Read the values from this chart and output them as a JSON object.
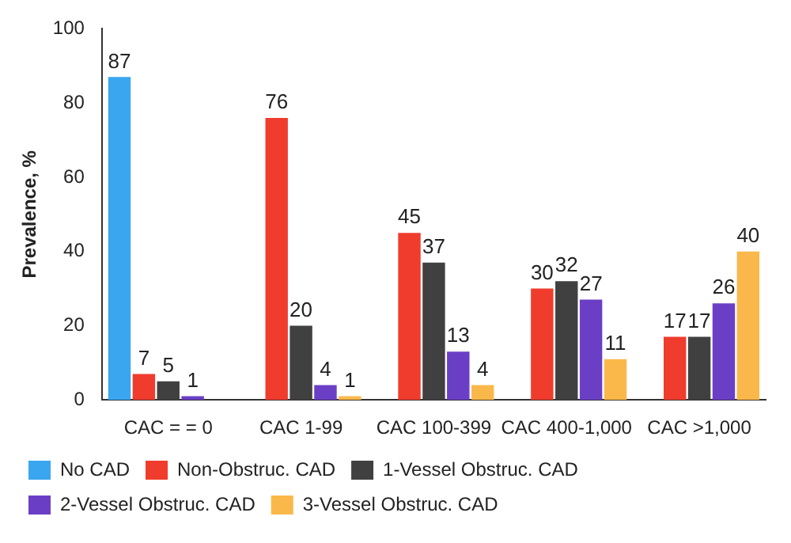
{
  "chart_data": {
    "type": "bar",
    "ylabel": "Prevalence, %",
    "categories": [
      "CAC = = 0",
      "CAC 1-99",
      "CAC 100-399",
      "CAC 400-1,000",
      "CAC >1,000"
    ],
    "series": [
      {
        "name": "No CAD",
        "color": "#3aa6f0",
        "values": [
          87,
          null,
          null,
          null,
          null
        ]
      },
      {
        "name": "Non-Obstruc. CAD",
        "color": "#f03c2c",
        "values": [
          7,
          76,
          45,
          30,
          17
        ]
      },
      {
        "name": "1-Vessel Obstruc. CAD",
        "color": "#404040",
        "values": [
          5,
          20,
          37,
          32,
          17
        ]
      },
      {
        "name": "2-Vessel Obstruc. CAD",
        "color": "#6a3fc6",
        "values": [
          1,
          4,
          13,
          27,
          26
        ]
      },
      {
        "name": "3-Vessel Obstruc. CAD",
        "color": "#fbb84a",
        "values": [
          null,
          1,
          4,
          11,
          40
        ]
      }
    ],
    "ylim": [
      0,
      100
    ],
    "yticks": [
      0,
      20,
      40,
      60,
      80,
      100
    ],
    "grid": false,
    "legend": "bottom",
    "data_labels": true
  }
}
